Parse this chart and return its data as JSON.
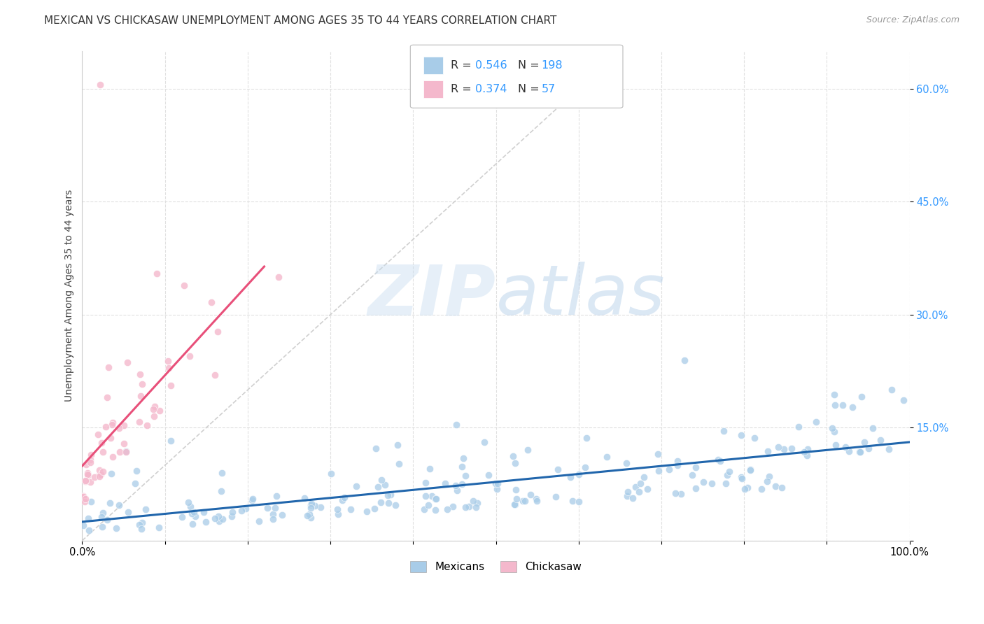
{
  "title": "MEXICAN VS CHICKASAW UNEMPLOYMENT AMONG AGES 35 TO 44 YEARS CORRELATION CHART",
  "source": "Source: ZipAtlas.com",
  "ylabel": "Unemployment Among Ages 35 to 44 years",
  "xlim": [
    0,
    1.0
  ],
  "ylim": [
    0,
    0.65
  ],
  "ytick_positions": [
    0.0,
    0.15,
    0.3,
    0.45,
    0.6
  ],
  "yticklabels": [
    "",
    "15.0%",
    "30.0%",
    "45.0%",
    "60.0%"
  ],
  "mexican_color": "#a8cce8",
  "chickasaw_color": "#f4b8cc",
  "mexican_line_color": "#2166ac",
  "chickasaw_line_color": "#e8507a",
  "diagonal_color": "#d0d0d0",
  "R_mexican": 0.546,
  "N_mexican": 198,
  "R_chickasaw": 0.374,
  "N_chickasaw": 57,
  "legend_label_mexican": "Mexicans",
  "legend_label_chickasaw": "Chickasaw",
  "background_color": "#ffffff",
  "grid_color": "#e0e0e0"
}
